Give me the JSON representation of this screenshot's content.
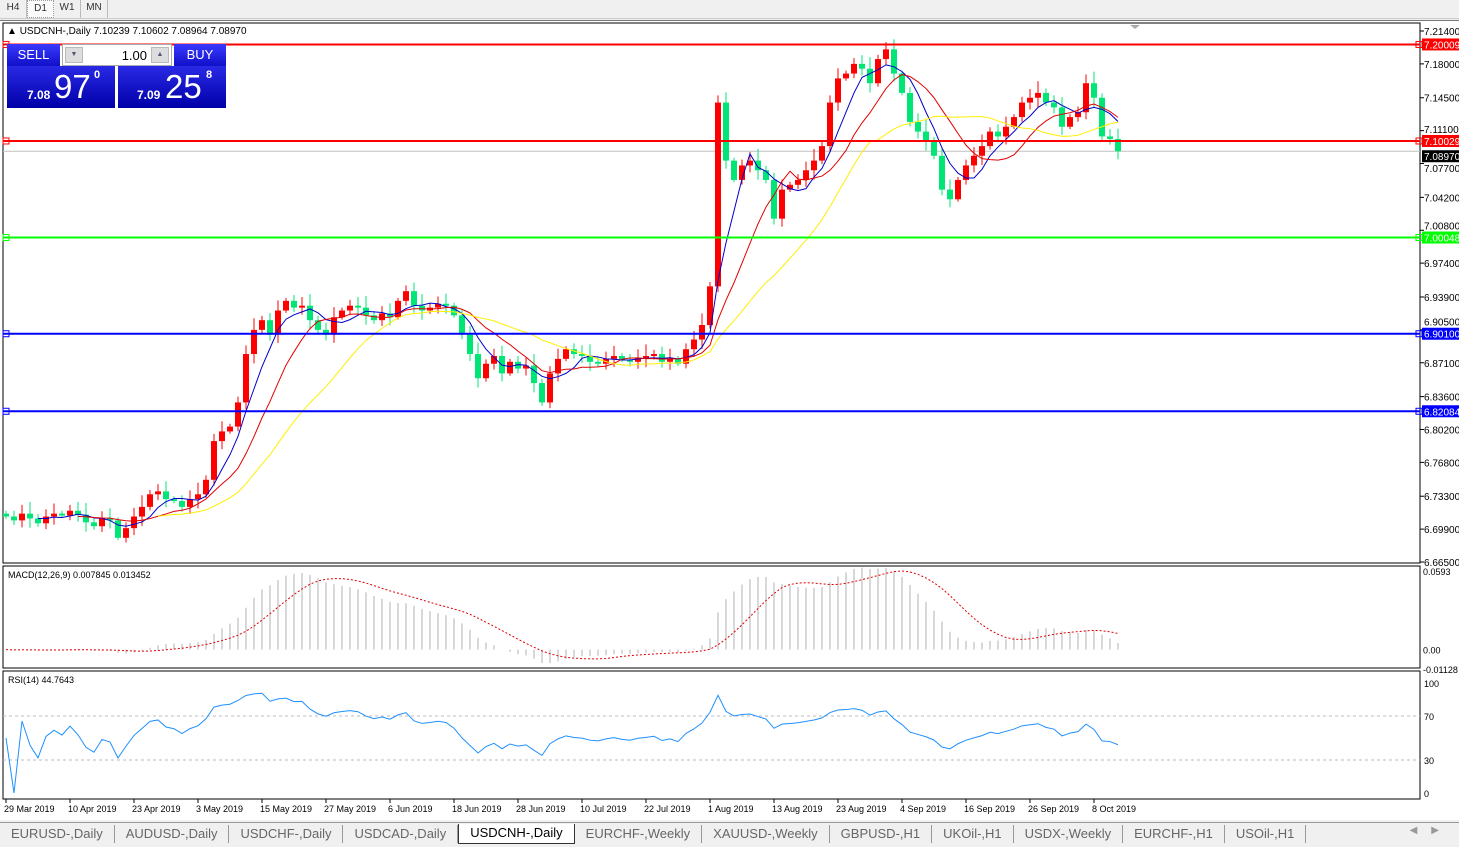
{
  "toolbar": {
    "timeframes": [
      "H4",
      "D1",
      "W1",
      "MN"
    ],
    "selected": "D1"
  },
  "chart": {
    "title": "USDCNH-,Daily  7.10239 7.10602 7.08964 7.08970",
    "symbol": "USDCNH-,Daily",
    "ohlc_readout": "7.10239 7.10602 7.08964 7.08970",
    "bull_color": "#ff0000",
    "bear_color": "#00e676",
    "price_ticks": [
      "7.21400",
      "7.18000",
      "7.14500",
      "7.11100",
      "7.07700",
      "7.04200",
      "7.00800",
      "6.97400",
      "6.93900",
      "6.90500",
      "6.87100",
      "6.83600",
      "6.80200",
      "6.76800",
      "6.73300",
      "6.69900",
      "6.66500"
    ],
    "price_range": [
      6.665,
      7.214
    ],
    "hlines": [
      {
        "price": 7.20009,
        "label": "7.20009",
        "color": "#ff0000"
      },
      {
        "price": 7.10029,
        "label": "7.10029",
        "color": "#ff0000"
      },
      {
        "price": 7.00048,
        "label": "7.00048",
        "color": "#00ff00"
      },
      {
        "price": 6.901,
        "label": "6.90100",
        "color": "#0000ff"
      },
      {
        "price": 6.82084,
        "label": "6.82084",
        "color": "#0000ff"
      }
    ],
    "bid_line": {
      "price": 7.0897,
      "label": "7.08970"
    },
    "ma_colors": {
      "fast": "#0000cc",
      "mid": "#e00000",
      "slow": "#ffee00"
    },
    "closes": [
      6.712,
      6.708,
      6.715,
      6.71,
      6.705,
      6.712,
      6.715,
      6.713,
      6.718,
      6.714,
      6.706,
      6.702,
      6.71,
      6.708,
      6.69,
      6.7,
      6.712,
      6.722,
      6.735,
      6.738,
      6.73,
      6.728,
      6.722,
      6.73,
      6.735,
      6.75,
      6.79,
      6.8,
      6.805,
      6.83,
      6.88,
      6.905,
      6.915,
      6.9,
      6.925,
      6.935,
      6.928,
      6.93,
      6.915,
      6.905,
      6.9,
      6.918,
      6.925,
      6.93,
      6.928,
      6.92,
      6.915,
      6.922,
      6.918,
      6.935,
      6.945,
      6.93,
      6.925,
      6.928,
      6.932,
      6.93,
      6.92,
      6.9,
      6.88,
      6.855,
      6.87,
      6.878,
      6.86,
      6.872,
      6.865,
      6.868,
      6.85,
      6.83,
      6.86,
      6.875,
      6.885,
      6.88,
      6.878,
      6.872,
      6.87,
      6.875,
      6.878,
      6.874,
      6.872,
      6.876,
      6.878,
      6.88,
      6.872,
      6.875,
      6.87,
      6.885,
      6.895,
      6.91,
      6.95,
      7.14,
      7.08,
      7.06,
      7.075,
      7.08,
      7.07,
      7.06,
      7.02,
      7.05,
      7.055,
      7.06,
      7.07,
      7.08,
      7.095,
      7.14,
      7.165,
      7.17,
      7.18,
      7.175,
      7.16,
      7.185,
      7.195,
      7.17,
      7.15,
      7.12,
      7.11,
      7.1,
      7.085,
      7.05,
      7.04,
      7.06,
      7.075,
      7.085,
      7.095,
      7.11,
      7.105,
      7.115,
      7.125,
      7.14,
      7.145,
      7.15,
      7.14,
      7.135,
      7.115,
      7.125,
      7.13,
      7.16,
      7.145,
      7.105,
      7.1024,
      7.0897
    ],
    "date_labels": [
      {
        "label": "29 Mar 2019",
        "bar": 0
      },
      {
        "label": "10 Apr 2019",
        "bar": 8
      },
      {
        "label": "23 Apr 2019",
        "bar": 16
      },
      {
        "label": "3 May 2019",
        "bar": 24
      },
      {
        "label": "15 May 2019",
        "bar": 32
      },
      {
        "label": "27 May 2019",
        "bar": 40
      },
      {
        "label": "6 Jun 2019",
        "bar": 48
      },
      {
        "label": "18 Jun 2019",
        "bar": 56
      },
      {
        "label": "28 Jun 2019",
        "bar": 64
      },
      {
        "label": "10 Jul 2019",
        "bar": 72
      },
      {
        "label": "22 Jul 2019",
        "bar": 80
      },
      {
        "label": "1 Aug 2019",
        "bar": 88
      },
      {
        "label": "13 Aug 2019",
        "bar": 96
      },
      {
        "label": "23 Aug 2019",
        "bar": 104
      },
      {
        "label": "4 Sep 2019",
        "bar": 112
      },
      {
        "label": "16 Sep 2019",
        "bar": 120
      },
      {
        "label": "26 Sep 2019",
        "bar": 128
      },
      {
        "label": "8 Oct 2019",
        "bar": 136
      }
    ]
  },
  "macd": {
    "title": "MACD(12,26,9) 0.007845 0.013452",
    "ticks": [
      "0.0593",
      "0.00",
      "-0.01128"
    ],
    "range": [
      -0.01128,
      0.0593
    ]
  },
  "rsi": {
    "title": "RSI(14) 44.7643",
    "ticks": [
      "100",
      "70",
      "30",
      "0"
    ],
    "levels": [
      30,
      70
    ]
  },
  "one_click": {
    "sell_label": "SELL",
    "buy_label": "BUY",
    "lot": "1.00",
    "sell_price": {
      "prefix": "7.08",
      "big": "97",
      "sup": "0"
    },
    "buy_price": {
      "prefix": "7.09",
      "big": "25",
      "sup": "8"
    }
  },
  "tabs": [
    "EURUSD-,Daily",
    "AUDUSD-,Daily",
    "USDCHF-,Daily",
    "USDCAD-,Daily",
    "USDCNH-,Daily",
    "EURCHF-,Weekly",
    "XAUUSD-,Weekly",
    "GBPUSD-,H1",
    "UKOil-,H1",
    "USDX-,Weekly",
    "EURCHF-,H1",
    "USOil-,H1"
  ],
  "active_tab": "USDCNH-,Daily"
}
